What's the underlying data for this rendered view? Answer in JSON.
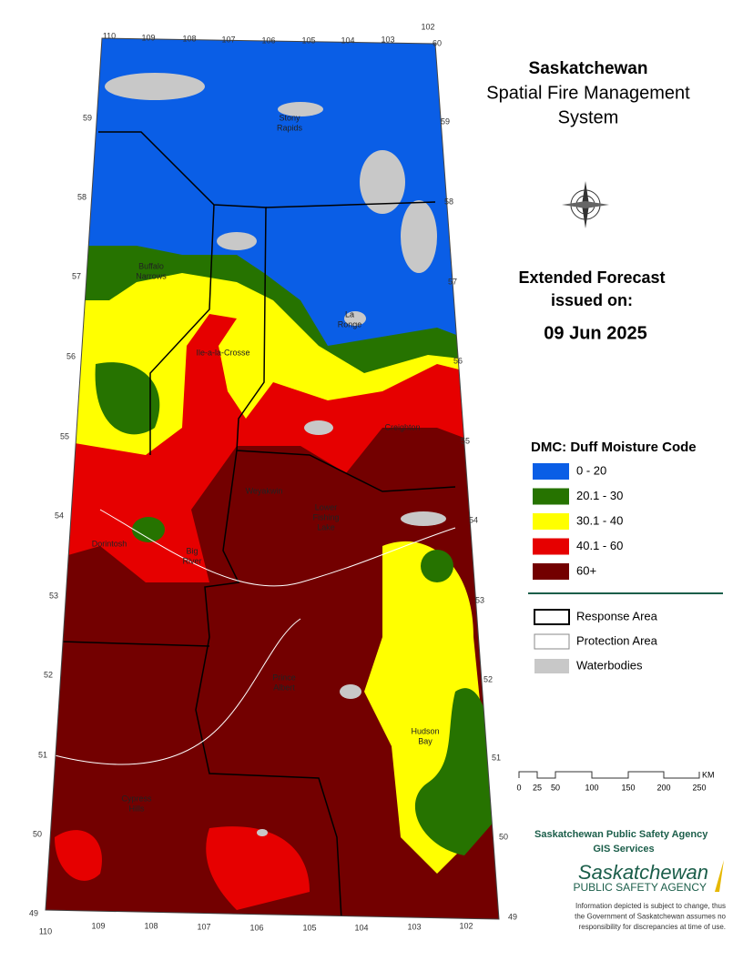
{
  "header": {
    "title": "Saskatchewan",
    "subtitle": [
      "Spatial Fire Management",
      "System"
    ]
  },
  "forecast": {
    "label": [
      "Extended Forecast",
      "issued on:"
    ],
    "date": "09 Jun 2025"
  },
  "legend": {
    "title": "DMC: Duff Moisture Code",
    "items": [
      {
        "label": "0 - 20",
        "color": "#0a5ee6"
      },
      {
        "label": "20.1 - 30",
        "color": "#267300"
      },
      {
        "label": "30.1 - 40",
        "color": "#ffff00"
      },
      {
        "label": "40.1 - 60",
        "color": "#e60000"
      },
      {
        "label": "60+",
        "color": "#730000"
      }
    ],
    "boundaries": [
      "Response Area",
      "Protection Area",
      "Waterbodies"
    ]
  },
  "scale": {
    "labels": [
      "0",
      "25",
      "50",
      "100",
      "150",
      "200",
      "250"
    ],
    "unit": "KM"
  },
  "grid_labels": {
    "top": [
      110,
      109,
      108,
      107,
      106,
      105,
      104,
      103,
      102,
      60
    ],
    "bottom": [
      110,
      109,
      108,
      107,
      106,
      105,
      104,
      103,
      102
    ],
    "left": [
      59,
      58,
      57,
      56,
      55,
      54,
      53,
      52,
      51,
      50,
      49
    ],
    "right": [
      59,
      58,
      57,
      56,
      55,
      54,
      53,
      52,
      51,
      50,
      49
    ]
  },
  "places": [
    [
      "Stony",
      "Rapids"
    ],
    [
      "Buffalo",
      "Narrows"
    ],
    [
      "La",
      "Ronge"
    ],
    [
      "Ile-a-la-Crosse"
    ],
    [
      "Creighton"
    ],
    [
      "Weyakwin"
    ],
    [
      "Lower",
      "Fishing",
      "Lake"
    ],
    [
      "Dorintosh"
    ],
    [
      "Big",
      "River"
    ],
    [
      "Prince",
      "Albert"
    ],
    [
      "Hudson",
      "Bay"
    ],
    [
      "Cypress",
      "Hills"
    ]
  ],
  "footer": {
    "agency": "Saskatchewan Public Safety Agency",
    "unit": "GIS  Services",
    "logo": [
      "Saskatchewan",
      "PUBLIC SAFETY AGENCY"
    ],
    "disclaimer": [
      "Information depicted is subject to change, thus",
      "the Government of Saskatchewan assumes no",
      "responsibility for discrepancies at time of use."
    ]
  }
}
